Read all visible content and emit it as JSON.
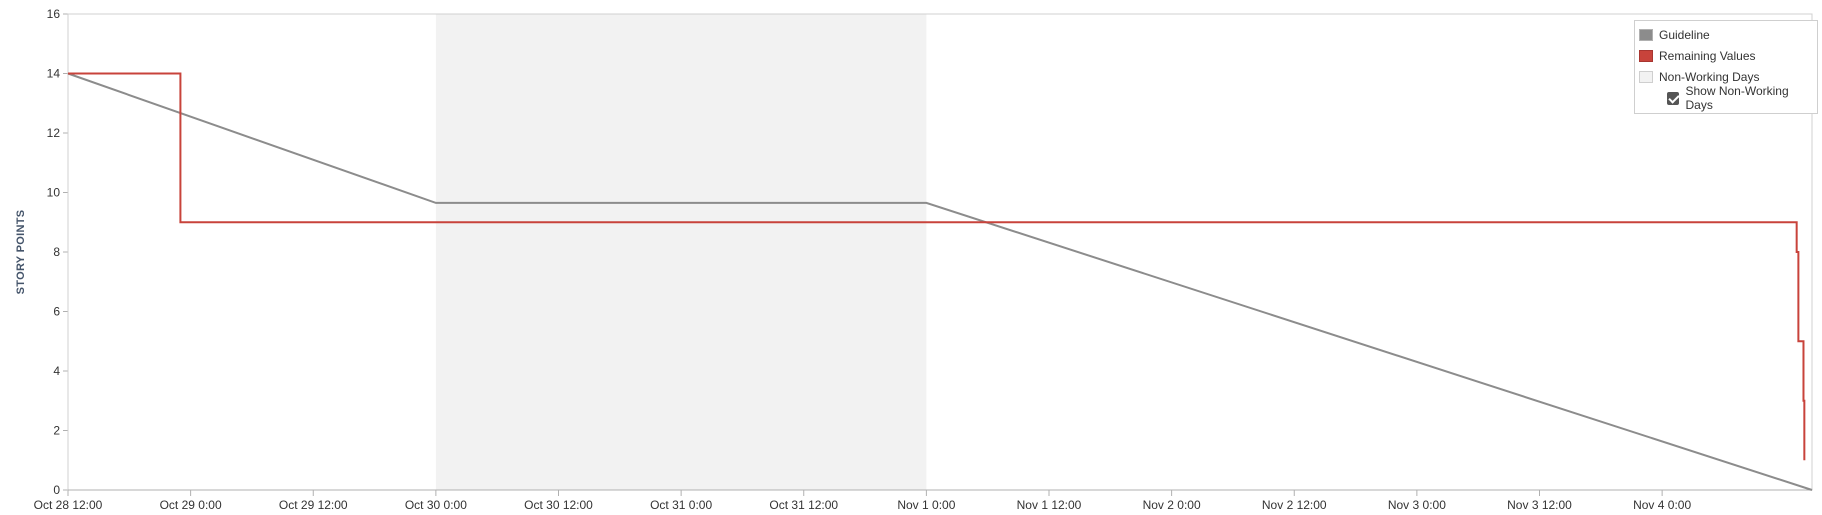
{
  "chart_data": {
    "type": "line",
    "ylabel": "STORY POINTS",
    "xlabel": "",
    "title": "",
    "ylim": [
      0,
      16
    ],
    "yticks": [
      0,
      2,
      4,
      6,
      8,
      10,
      12,
      14,
      16
    ],
    "xlim": [
      "Oct 28 12:00",
      "Nov 4 14:40"
    ],
    "xticks": [
      "Oct 28 12:00",
      "Oct 29 0:00",
      "Oct 29 12:00",
      "Oct 30 0:00",
      "Oct 30 12:00",
      "Oct 31 0:00",
      "Oct 31 12:00",
      "Nov 1 0:00",
      "Nov 1 12:00",
      "Nov 2 0:00",
      "Nov 2 12:00",
      "Nov 3 0:00",
      "Nov 3 12:00",
      "Nov 4 0:00"
    ],
    "grid": false,
    "legend_position": "top-right",
    "non_working_days": [
      {
        "start": "Oct 30 0:00",
        "end": "Nov 1 0:00",
        "color": "#f2f2f2"
      }
    ],
    "series": [
      {
        "name": "Guideline",
        "color": "#8c8c8c",
        "step": false,
        "points": [
          {
            "x": "Oct 28 12:00",
            "y": 14
          },
          {
            "x": "Oct 30 0:00",
            "y": 9.65
          },
          {
            "x": "Nov 1 0:00",
            "y": 9.65
          },
          {
            "x": "Nov 4 14:40",
            "y": 0
          }
        ]
      },
      {
        "name": "Remaining Values",
        "color": "#c8433b",
        "step": true,
        "points": [
          {
            "x": "Oct 28 12:00",
            "y": 14
          },
          {
            "x": "Oct 28 23:00",
            "y": 14
          },
          {
            "x": "Oct 28 23:00",
            "y": 9
          },
          {
            "x": "Nov 4 13:10",
            "y": 9
          },
          {
            "x": "Nov 4 13:10",
            "y": 8
          },
          {
            "x": "Nov 4 13:20",
            "y": 8
          },
          {
            "x": "Nov 4 13:20",
            "y": 5
          },
          {
            "x": "Nov 4 13:50",
            "y": 5
          },
          {
            "x": "Nov 4 13:50",
            "y": 3
          },
          {
            "x": "Nov 4 13:55",
            "y": 3
          },
          {
            "x": "Nov 4 13:55",
            "y": 1
          }
        ]
      }
    ]
  },
  "legend": {
    "items": [
      {
        "label": "Guideline",
        "color": "#8c8c8c"
      },
      {
        "label": "Remaining Values",
        "color": "#c8433b"
      },
      {
        "label": "Non-Working Days",
        "color": "#f2f2f2"
      }
    ],
    "checkbox_label": "Show Non-Working Days",
    "checkbox_checked": true
  }
}
